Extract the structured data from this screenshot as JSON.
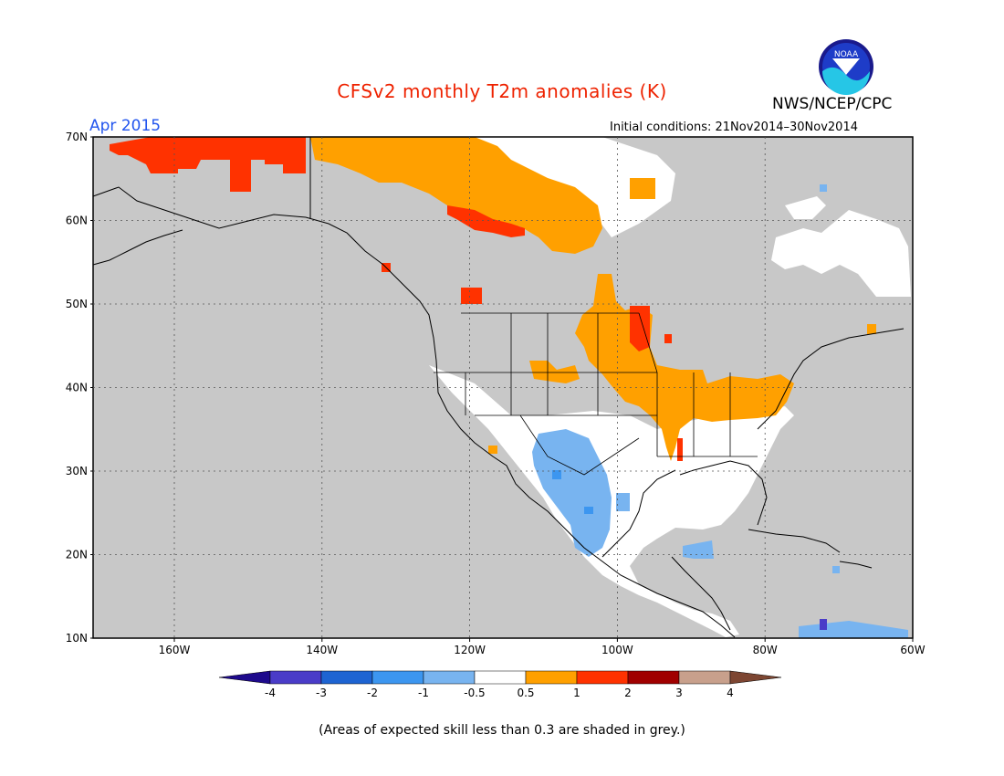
{
  "title": "CFSv2 monthly T2m anomalies (K)",
  "valid_month": "Apr 2015",
  "organization": "NWS/NCEP/CPC",
  "logo_text": "NOAA",
  "initial_conditions": "Initial conditions: 21Nov2014–30Nov2014",
  "footnote": "(Areas of expected skill less than 0.3 are shaded in grey.)",
  "colors": {
    "title": "#ee2200",
    "valid_month": "#2255ee",
    "grey_skill": "#c8c8c8",
    "land_white": "#ffffff"
  },
  "map": {
    "lat_labels": [
      "70N",
      "60N",
      "50N",
      "40N",
      "30N",
      "20N",
      "10N"
    ],
    "lon_labels": [
      "160W",
      "140W",
      "120W",
      "100W",
      "80W",
      "60W"
    ],
    "lat_range": [
      10,
      70
    ],
    "lon_range": [
      -171,
      -60
    ],
    "grid": "dotted"
  },
  "colorbar": {
    "labels": [
      "-4",
      "-3",
      "-2",
      "-1",
      "-0.5",
      "0.5",
      "1",
      "2",
      "3",
      "4"
    ],
    "colors": [
      "#1e0a8c",
      "#4a3cc8",
      "#1e64d2",
      "#3c96f0",
      "#78b4f0",
      "#ffffff",
      "#ffa000",
      "#ff3200",
      "#a00000",
      "#c8a08c",
      "#7d4632"
    ]
  }
}
